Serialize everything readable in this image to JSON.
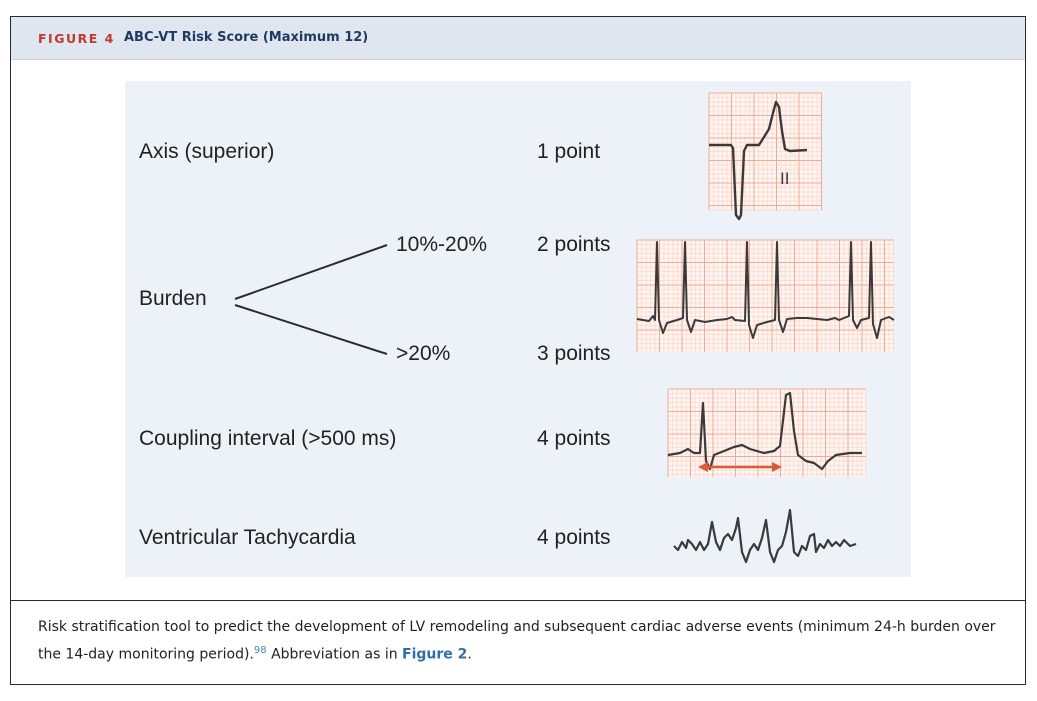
{
  "figure": {
    "label": "FIGURE 4",
    "title": "ABC-VT Risk Score (Maximum 12)"
  },
  "criteria": [
    {
      "label": "Axis (superior)",
      "points": "1 point",
      "ecg_lead": "II"
    },
    {
      "label": "Burden",
      "branches": [
        {
          "label": "10%-20%",
          "points": "2 points"
        },
        {
          "label": ">20%",
          "points": "3 points"
        }
      ]
    },
    {
      "label": "Coupling interval (>500 ms)",
      "points": "4 points"
    },
    {
      "label": "Ventricular Tachycardia",
      "points": "4 points"
    }
  ],
  "caption": {
    "text": "Risk stratification tool to predict the development of LV remodeling and subsequent cardiac adverse events (minimum 24-h burden over the 14-day monitoring period).",
    "ref": "98",
    "suffix": " Abbreviation as in ",
    "link": "Figure 2",
    "end": "."
  },
  "colors": {
    "header_bg": "#dfe6f0",
    "label_red": "#c0392b",
    "title_navy": "#1f3a5f",
    "panel_bg": "#edf1f8",
    "ecg_grid": "#f0a48c",
    "ecg_trace": "#3a3a3a",
    "arrow": "#e0583a"
  }
}
